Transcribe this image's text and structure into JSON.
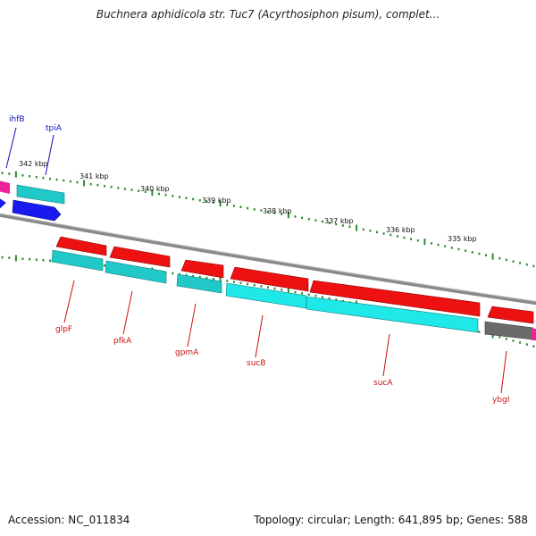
{
  "header": {
    "title": "Buchnera aphidicola str. Tuc7 (Acyrthosiphon pisum), complet..."
  },
  "footer": {
    "accession": "Accession: NC_011834",
    "summary": "Topology: circular; Length: 641,895 bp; Genes: 588"
  },
  "colors": {
    "forward_cds": "#1a1aee",
    "reverse_cds": "#ee1111",
    "forward_rna": "#20c8c8",
    "reverse_rna": "#20e8e8",
    "pseudo": "#6a6a6a",
    "other_feature": "#ee2299",
    "tick": "#2e8b2e",
    "backbone": "#8a8a8a",
    "forward_label": "#1010c0",
    "reverse_label": "#cc1010"
  },
  "scale": {
    "ticks": [
      "342 kbp",
      "341 kbp",
      "340 kbp",
      "339 kbp",
      "338 kbp",
      "337 kbp",
      "336 kbp",
      "335 kbp"
    ]
  },
  "genes": {
    "forward": [
      "ihfB",
      "tpiA"
    ],
    "reverse": [
      "glpF",
      "pfkA",
      "gpmA",
      "sucB",
      "sucA",
      "ybgI"
    ]
  }
}
